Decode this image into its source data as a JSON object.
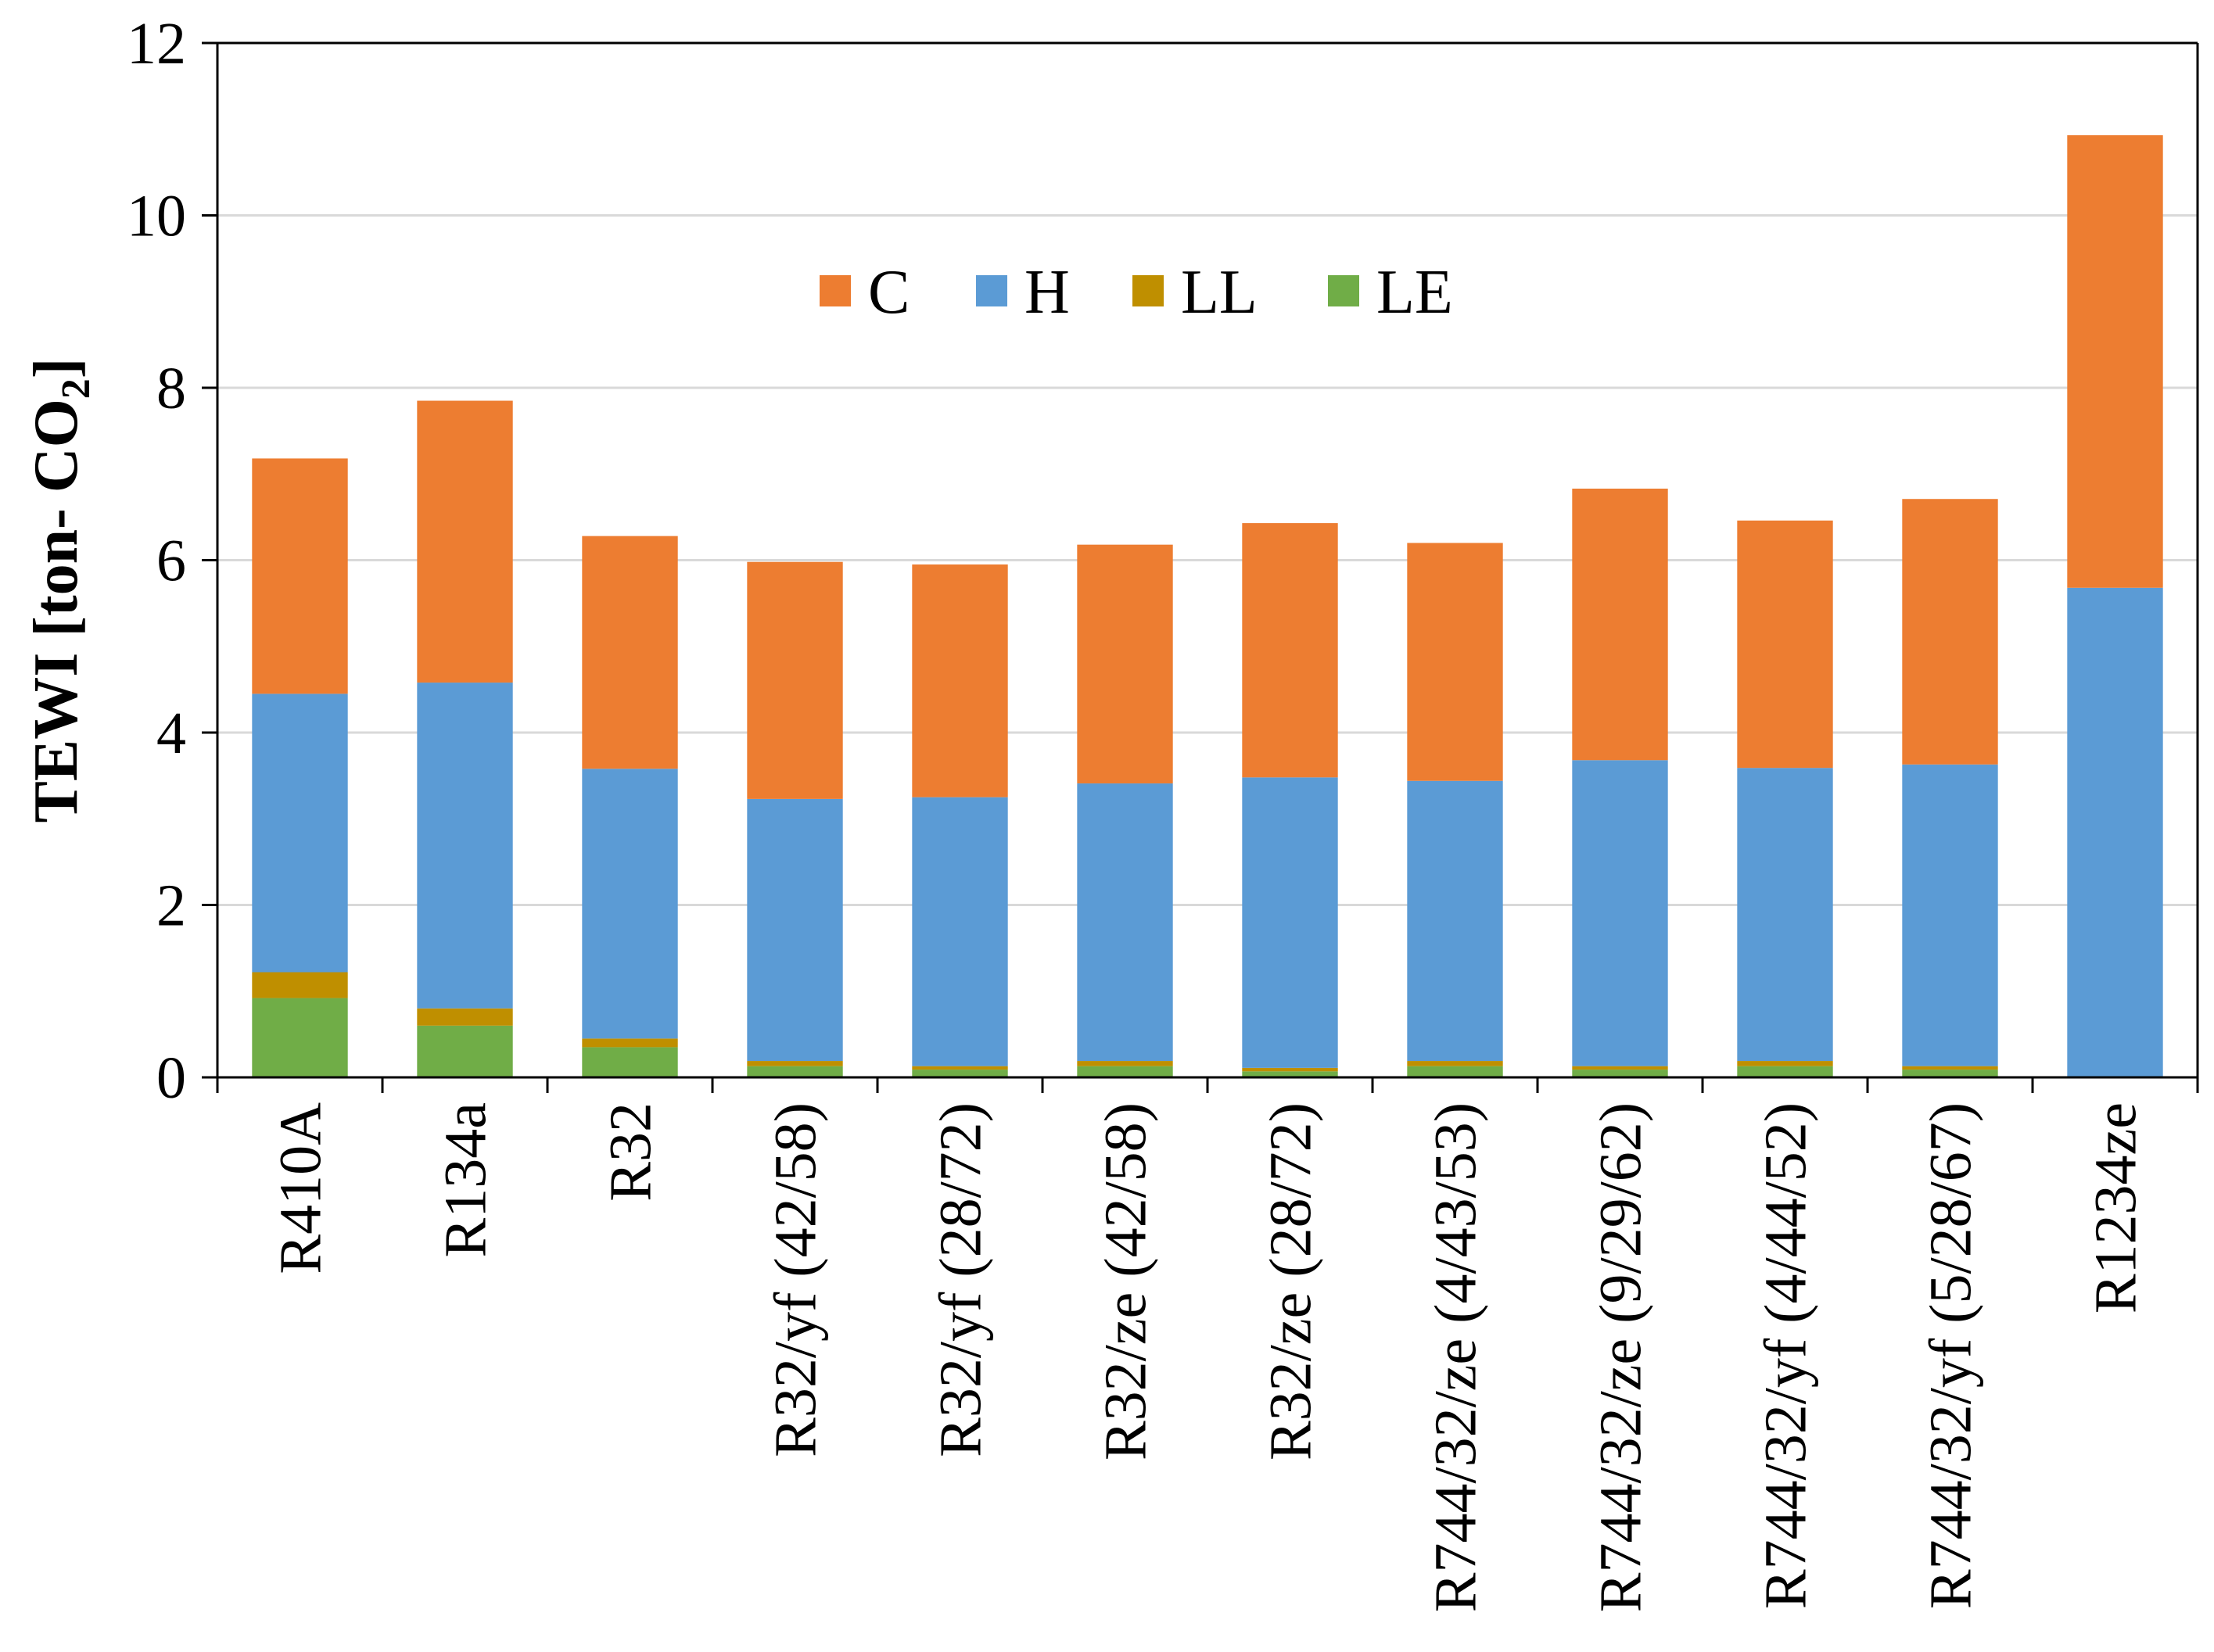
{
  "chart_data": {
    "type": "bar",
    "stacked": true,
    "title": "",
    "xlabel": "",
    "ylabel": "TEWI [ton- CO",
    "ylabel_subscript": "2",
    "ylabel_suffix": "]",
    "ylim": [
      0,
      12
    ],
    "yticks": [
      "0",
      "2",
      "4",
      "6",
      "8",
      "10",
      "12"
    ],
    "grid": true,
    "legend_position": "top-center",
    "categories": [
      "R410A",
      "R134a",
      "R32",
      "R32/yf (42/58)",
      "R32/yf (28/72)",
      "R32/ze (42/58)",
      "R32/ze (28/72)",
      "R744/32/ze (4/43/53)",
      "R744/32/ze (9/29/62)",
      "R744/32/yf (4/44/52)",
      "R744/32/yf (5/28/67)",
      "R1234ze"
    ],
    "series": [
      {
        "name": "LE",
        "color": "#70ad47",
        "values": [
          0.92,
          0.6,
          0.35,
          0.13,
          0.09,
          0.13,
          0.07,
          0.13,
          0.09,
          0.13,
          0.09,
          0.0
        ]
      },
      {
        "name": "LL",
        "color": "#bf8f00",
        "values": [
          0.3,
          0.2,
          0.1,
          0.06,
          0.04,
          0.06,
          0.04,
          0.06,
          0.04,
          0.06,
          0.04,
          0.0
        ]
      },
      {
        "name": "H",
        "color": "#5b9bd5",
        "values": [
          3.23,
          3.78,
          3.13,
          3.04,
          3.12,
          3.22,
          3.37,
          3.25,
          3.55,
          3.4,
          3.5,
          5.68
        ]
      },
      {
        "name": "C",
        "color": "#ed7d31",
        "values": [
          2.73,
          3.27,
          2.7,
          2.75,
          2.7,
          2.77,
          2.95,
          2.76,
          3.15,
          2.87,
          3.08,
          5.25
        ]
      }
    ],
    "legend_order": [
      "C",
      "H",
      "LL",
      "LE"
    ]
  }
}
